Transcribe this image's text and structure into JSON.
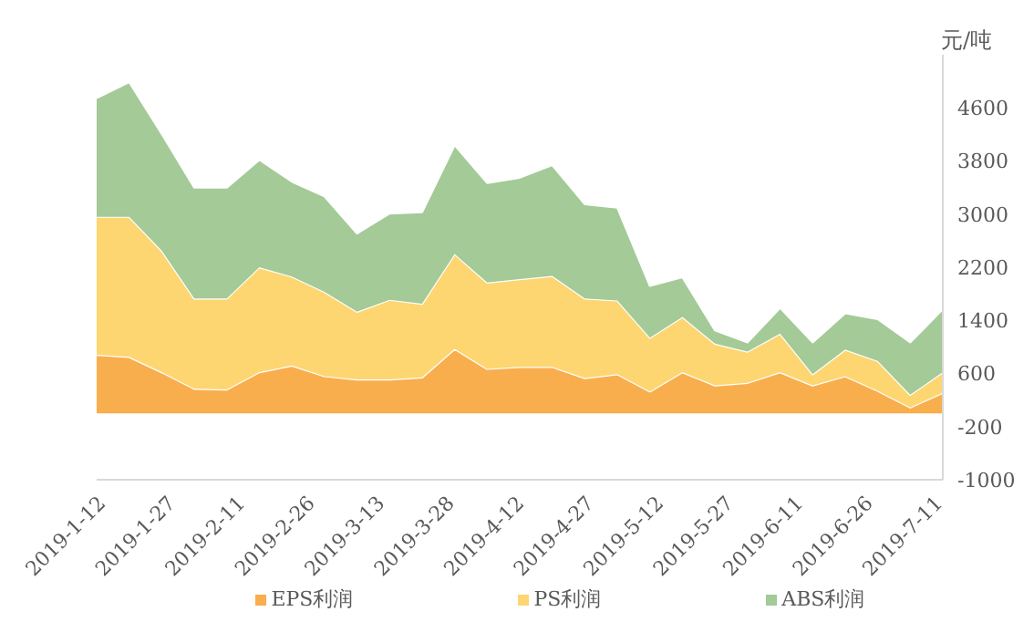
{
  "chart_data": {
    "type": "area",
    "stacked": true,
    "ylabel": "元/吨",
    "x": [
      "2019-01-12",
      "2019-01-19",
      "2019-01-26",
      "2019-02-02",
      "2019-02-09",
      "2019-02-16",
      "2019-02-23",
      "2019-03-02",
      "2019-03-09",
      "2019-03-16",
      "2019-03-23",
      "2019-03-30",
      "2019-04-06",
      "2019-04-13",
      "2019-04-20",
      "2019-04-27",
      "2019-05-04",
      "2019-05-11",
      "2019-05-18",
      "2019-05-25",
      "2019-06-01",
      "2019-06-08",
      "2019-06-15",
      "2019-06-22",
      "2019-06-29",
      "2019-07-06",
      "2019-07-13"
    ],
    "series": [
      {
        "name": "EPS利润",
        "color": "#f9ae4e",
        "values": [
          880,
          850,
          620,
          370,
          360,
          620,
          720,
          560,
          510,
          510,
          540,
          970,
          670,
          700,
          700,
          530,
          590,
          330,
          620,
          420,
          460,
          620,
          420,
          560,
          340,
          90,
          310
        ]
      },
      {
        "name": "PS利润",
        "color": "#fdd672",
        "values": [
          2080,
          2110,
          1830,
          1360,
          1370,
          1580,
          1340,
          1270,
          1020,
          1200,
          1110,
          1430,
          1300,
          1320,
          1370,
          1200,
          1110,
          810,
          830,
          630,
          470,
          580,
          170,
          400,
          450,
          190,
          310
        ]
      },
      {
        "name": "ABS利润",
        "color": "#a3ca97",
        "values": [
          1790,
          2030,
          1760,
          1670,
          1670,
          1620,
          1430,
          1440,
          1180,
          1300,
          1380,
          1640,
          1500,
          1530,
          1670,
          1420,
          1400,
          780,
          600,
          200,
          140,
          390,
          480,
          550,
          630,
          790,
          950
        ]
      }
    ],
    "xlim": [
      "2019-01-12",
      "2019-07-13"
    ],
    "xticks": [
      {
        "value": "2019-01-12",
        "label": "2019-1-12"
      },
      {
        "value": "2019-01-27",
        "label": "2019-1-27"
      },
      {
        "value": "2019-02-11",
        "label": "2019-2-11"
      },
      {
        "value": "2019-02-26",
        "label": "2019-2-26"
      },
      {
        "value": "2019-03-13",
        "label": "2019-3-13"
      },
      {
        "value": "2019-03-28",
        "label": "2019-3-28"
      },
      {
        "value": "2019-04-12",
        "label": "2019-4-12"
      },
      {
        "value": "2019-04-27",
        "label": "2019-4-27"
      },
      {
        "value": "2019-05-12",
        "label": "2019-5-12"
      },
      {
        "value": "2019-05-27",
        "label": "2019-5-27"
      },
      {
        "value": "2019-06-11",
        "label": "2019-6-11"
      },
      {
        "value": "2019-06-26",
        "label": "2019-6-26"
      },
      {
        "value": "2019-07-11",
        "label": "2019-7-11"
      }
    ],
    "ylim": [
      -1000,
      5400
    ],
    "yticks": [
      -1000,
      -200,
      600,
      1400,
      2200,
      3000,
      3800,
      4600
    ],
    "grid": false,
    "legend": "bottom"
  }
}
